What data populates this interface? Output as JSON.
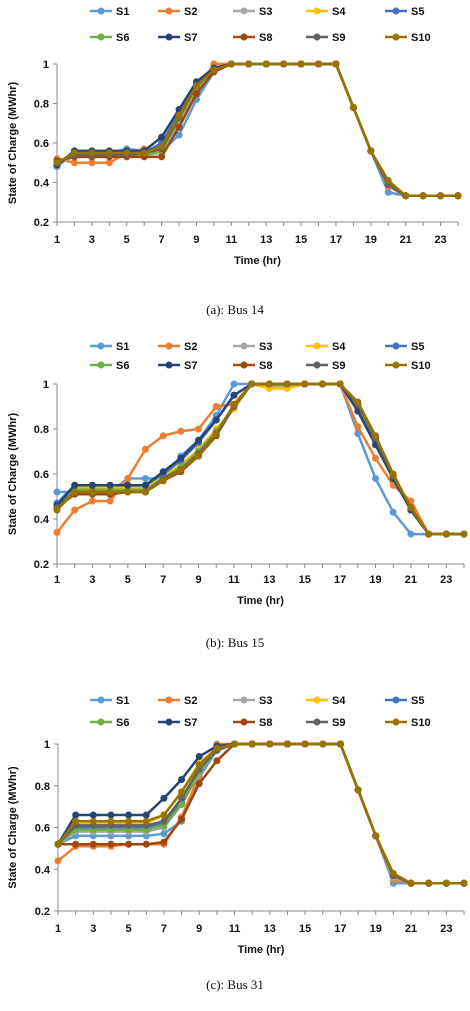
{
  "colors": {
    "S1": "#5b9bd5",
    "S2": "#ed7d31",
    "S3": "#a5a5a5",
    "S4": "#ffc000",
    "S5": "#4472c4",
    "S6": "#70ad47",
    "S7": "#264478",
    "S8": "#9e480e",
    "S9": "#636363",
    "S10": "#997300"
  },
  "chart_data": [
    {
      "type": "line",
      "caption": "(a): Bus 14",
      "xlabel": "Time (hr)",
      "ylabel": "State of Charge (MWhr)",
      "ylim": [
        0.2,
        1
      ],
      "yticks": [
        "0.2",
        "0.4",
        "0.6",
        "0.8",
        "1"
      ],
      "xlim": [
        1,
        24
      ],
      "xticks": [
        "1",
        "3",
        "5",
        "7",
        "9",
        "11",
        "13",
        "15",
        "17",
        "19",
        "21",
        "23"
      ],
      "grid": false,
      "legend": "top",
      "x": [
        1,
        2,
        3,
        4,
        5,
        6,
        7,
        8,
        9,
        10,
        11,
        12,
        13,
        14,
        15,
        16,
        17,
        18,
        19,
        20,
        21,
        22,
        23,
        24
      ],
      "series": [
        {
          "name": "S1",
          "values": [
            0.48,
            0.55,
            0.55,
            0.55,
            0.57,
            0.56,
            0.56,
            0.64,
            0.82,
            0.96,
            1,
            1,
            1,
            1,
            1,
            1,
            1,
            0.78,
            0.56,
            0.35,
            0.333,
            0.333,
            0.333,
            0.333
          ]
        },
        {
          "name": "S2",
          "values": [
            0.52,
            0.5,
            0.5,
            0.5,
            0.55,
            0.57,
            0.55,
            0.7,
            0.86,
            1,
            1,
            1,
            1,
            1,
            1,
            1,
            1,
            0.78,
            0.56,
            0.38,
            0.333,
            0.333,
            0.333,
            0.333
          ]
        },
        {
          "name": "S3",
          "values": [
            0.5,
            0.53,
            0.53,
            0.53,
            0.54,
            0.54,
            0.55,
            0.7,
            0.87,
            0.96,
            1,
            1,
            1,
            1,
            1,
            1,
            1,
            0.78,
            0.56,
            0.39,
            0.333,
            0.333,
            0.333,
            0.333
          ]
        },
        {
          "name": "S4",
          "values": [
            0.5,
            0.54,
            0.54,
            0.54,
            0.55,
            0.55,
            0.58,
            0.72,
            0.88,
            0.97,
            1,
            1,
            1,
            1,
            1,
            1,
            1,
            0.78,
            0.56,
            0.39,
            0.333,
            0.333,
            0.333,
            0.333
          ]
        },
        {
          "name": "S5",
          "values": [
            0.49,
            0.55,
            0.55,
            0.55,
            0.55,
            0.55,
            0.6,
            0.75,
            0.9,
            0.97,
            1,
            1,
            1,
            1,
            1,
            1,
            1,
            0.78,
            0.56,
            0.39,
            0.333,
            0.333,
            0.333,
            0.333
          ]
        },
        {
          "name": "S6",
          "values": [
            0.5,
            0.54,
            0.54,
            0.54,
            0.54,
            0.54,
            0.56,
            0.72,
            0.88,
            0.97,
            1,
            1,
            1,
            1,
            1,
            1,
            1,
            0.78,
            0.56,
            0.39,
            0.333,
            0.333,
            0.333,
            0.333
          ]
        },
        {
          "name": "S7",
          "values": [
            0.49,
            0.56,
            0.56,
            0.56,
            0.56,
            0.56,
            0.63,
            0.77,
            0.91,
            0.98,
            1,
            1,
            1,
            1,
            1,
            1,
            1,
            0.78,
            0.56,
            0.39,
            0.333,
            0.333,
            0.333,
            0.333
          ]
        },
        {
          "name": "S8",
          "values": [
            0.51,
            0.53,
            0.53,
            0.53,
            0.53,
            0.53,
            0.53,
            0.68,
            0.85,
            0.96,
            1,
            1,
            1,
            1,
            1,
            1,
            1,
            0.78,
            0.56,
            0.39,
            0.333,
            0.333,
            0.333,
            0.333
          ]
        },
        {
          "name": "S9",
          "values": [
            0.5,
            0.54,
            0.54,
            0.54,
            0.54,
            0.55,
            0.57,
            0.73,
            0.89,
            0.97,
            1,
            1,
            1,
            1,
            1,
            1,
            1,
            0.78,
            0.56,
            0.39,
            0.333,
            0.333,
            0.333,
            0.333
          ]
        },
        {
          "name": "S10",
          "values": [
            0.5,
            0.55,
            0.55,
            0.55,
            0.55,
            0.55,
            0.58,
            0.74,
            0.89,
            0.97,
            1,
            1,
            1,
            1,
            1,
            1,
            1,
            0.78,
            0.56,
            0.41,
            0.333,
            0.333,
            0.333,
            0.333
          ]
        }
      ]
    },
    {
      "type": "line",
      "caption": "(b): Bus 15",
      "xlabel": "Time (hr)",
      "ylabel": "State of Charge (MWhr)",
      "ylim": [
        0.2,
        1
      ],
      "yticks": [
        "0.2",
        "0.4",
        "0.6",
        "0.8",
        "1"
      ],
      "xlim": [
        1,
        24
      ],
      "xticks": [
        "1",
        "3",
        "5",
        "7",
        "9",
        "11",
        "13",
        "15",
        "17",
        "19",
        "21",
        "23"
      ],
      "grid": false,
      "legend": "top",
      "x": [
        1,
        2,
        3,
        4,
        5,
        6,
        7,
        8,
        9,
        10,
        11,
        12,
        13,
        14,
        15,
        16,
        17,
        18,
        19,
        20,
        21,
        22,
        23,
        24
      ],
      "series": [
        {
          "name": "S1",
          "values": [
            0.52,
            0.52,
            0.52,
            0.52,
            0.58,
            0.58,
            0.58,
            0.68,
            0.75,
            0.86,
            1,
            1,
            1,
            1,
            1,
            1,
            1,
            0.78,
            0.58,
            0.43,
            0.333,
            0.333,
            0.333,
            0.333
          ]
        },
        {
          "name": "S2",
          "values": [
            0.34,
            0.44,
            0.48,
            0.48,
            0.58,
            0.71,
            0.77,
            0.79,
            0.8,
            0.9,
            0.91,
            1,
            1,
            1,
            1,
            1,
            1,
            0.81,
            0.67,
            0.55,
            0.48,
            0.333,
            0.333,
            0.333
          ]
        },
        {
          "name": "S3",
          "values": [
            0.46,
            0.53,
            0.53,
            0.53,
            0.53,
            0.53,
            0.59,
            0.64,
            0.71,
            0.79,
            0.89,
            1,
            0.99,
            0.99,
            1,
            1,
            1,
            0.89,
            0.74,
            0.58,
            0.44,
            0.333,
            0.333,
            0.333
          ]
        },
        {
          "name": "S4",
          "values": [
            0.46,
            0.54,
            0.54,
            0.54,
            0.54,
            0.54,
            0.59,
            0.64,
            0.71,
            0.8,
            0.89,
            1,
            0.98,
            0.98,
            1,
            1,
            1,
            0.89,
            0.74,
            0.58,
            0.44,
            0.333,
            0.333,
            0.333
          ]
        },
        {
          "name": "S5",
          "values": [
            0.47,
            0.55,
            0.55,
            0.55,
            0.55,
            0.55,
            0.6,
            0.66,
            0.74,
            0.84,
            0.95,
            1,
            1,
            1,
            1,
            1,
            1,
            0.88,
            0.73,
            0.58,
            0.44,
            0.333,
            0.333,
            0.333
          ]
        },
        {
          "name": "S6",
          "values": [
            0.46,
            0.53,
            0.53,
            0.53,
            0.53,
            0.53,
            0.58,
            0.63,
            0.7,
            0.79,
            0.9,
            1,
            1,
            1,
            1,
            1,
            1,
            0.9,
            0.75,
            0.59,
            0.44,
            0.333,
            0.333,
            0.333
          ]
        },
        {
          "name": "S7",
          "values": [
            0.46,
            0.55,
            0.55,
            0.55,
            0.55,
            0.55,
            0.61,
            0.67,
            0.75,
            0.84,
            0.95,
            1,
            1,
            1,
            1,
            1,
            1,
            0.88,
            0.73,
            0.58,
            0.44,
            0.333,
            0.333,
            0.333
          ]
        },
        {
          "name": "S8",
          "values": [
            0.45,
            0.51,
            0.51,
            0.51,
            0.52,
            0.52,
            0.57,
            0.61,
            0.68,
            0.77,
            0.9,
            1,
            1,
            1,
            1,
            1,
            1,
            0.91,
            0.76,
            0.59,
            0.45,
            0.333,
            0.333,
            0.333
          ]
        },
        {
          "name": "S9",
          "values": [
            0.45,
            0.52,
            0.52,
            0.52,
            0.52,
            0.52,
            0.58,
            0.62,
            0.69,
            0.78,
            0.9,
            1,
            1,
            1,
            1,
            1,
            1,
            0.91,
            0.76,
            0.59,
            0.45,
            0.333,
            0.333,
            0.333
          ]
        },
        {
          "name": "S10",
          "values": [
            0.44,
            0.52,
            0.52,
            0.52,
            0.52,
            0.52,
            0.57,
            0.62,
            0.68,
            0.78,
            0.91,
            1,
            1,
            1,
            1,
            1,
            1,
            0.92,
            0.77,
            0.6,
            0.45,
            0.333,
            0.333,
            0.333
          ]
        }
      ]
    },
    {
      "type": "line",
      "caption": "(c): Bus 31",
      "xlabel": "Time (hr)",
      "ylabel": "State of Charge (MWhr)",
      "ylim": [
        0.2,
        1
      ],
      "yticks": [
        "0.2",
        "0.4",
        "0.6",
        "0.8",
        "1"
      ],
      "xlim": [
        1,
        24
      ],
      "xticks": [
        "1",
        "3",
        "5",
        "7",
        "9",
        "11",
        "13",
        "15",
        "17",
        "19",
        "21",
        "23"
      ],
      "grid": false,
      "legend": "top",
      "x": [
        1,
        2,
        3,
        4,
        5,
        6,
        7,
        8,
        9,
        10,
        11,
        12,
        13,
        14,
        15,
        16,
        17,
        18,
        19,
        20,
        21,
        22,
        23,
        24
      ],
      "series": [
        {
          "name": "S1",
          "values": [
            0.52,
            0.56,
            0.56,
            0.56,
            0.56,
            0.56,
            0.57,
            0.63,
            0.84,
            0.97,
            1,
            1,
            1,
            1,
            1,
            1,
            1,
            0.78,
            0.56,
            0.333,
            0.333,
            0.333,
            0.333,
            0.333
          ]
        },
        {
          "name": "S2",
          "values": [
            0.44,
            0.51,
            0.51,
            0.51,
            0.52,
            0.52,
            0.52,
            0.65,
            0.85,
            1,
            1,
            1,
            1,
            1,
            1,
            1,
            1,
            0.78,
            0.56,
            0.35,
            0.333,
            0.333,
            0.333,
            0.333
          ]
        },
        {
          "name": "S3",
          "values": [
            0.52,
            0.58,
            0.58,
            0.58,
            0.58,
            0.58,
            0.6,
            0.71,
            0.86,
            0.97,
            1,
            1,
            1,
            1,
            1,
            1,
            1,
            0.78,
            0.56,
            0.36,
            0.333,
            0.333,
            0.333,
            0.333
          ]
        },
        {
          "name": "S4",
          "values": [
            0.52,
            0.62,
            0.62,
            0.62,
            0.62,
            0.62,
            0.66,
            0.77,
            0.91,
            0.98,
            1,
            1,
            1,
            1,
            1,
            1,
            1,
            0.78,
            0.56,
            0.37,
            0.333,
            0.333,
            0.333,
            0.333
          ]
        },
        {
          "name": "S5",
          "values": [
            0.52,
            0.6,
            0.6,
            0.6,
            0.6,
            0.6,
            0.62,
            0.72,
            0.87,
            0.97,
            1,
            1,
            1,
            1,
            1,
            1,
            1,
            0.78,
            0.56,
            0.37,
            0.333,
            0.333,
            0.333,
            0.333
          ]
        },
        {
          "name": "S6",
          "values": [
            0.52,
            0.59,
            0.59,
            0.59,
            0.59,
            0.59,
            0.61,
            0.71,
            0.87,
            0.97,
            1,
            1,
            1,
            1,
            1,
            1,
            1,
            0.78,
            0.56,
            0.37,
            0.333,
            0.333,
            0.333,
            0.333
          ]
        },
        {
          "name": "S7",
          "values": [
            0.52,
            0.66,
            0.66,
            0.66,
            0.66,
            0.66,
            0.74,
            0.83,
            0.94,
            0.99,
            1,
            1,
            1,
            1,
            1,
            1,
            1,
            0.78,
            0.56,
            0.37,
            0.333,
            0.333,
            0.333,
            0.333
          ]
        },
        {
          "name": "S8",
          "values": [
            0.52,
            0.52,
            0.52,
            0.52,
            0.52,
            0.52,
            0.53,
            0.64,
            0.81,
            0.92,
            1,
            1,
            1,
            1,
            1,
            1,
            1,
            0.78,
            0.56,
            0.37,
            0.333,
            0.333,
            0.333,
            0.333
          ]
        },
        {
          "name": "S9",
          "values": [
            0.52,
            0.61,
            0.61,
            0.61,
            0.61,
            0.61,
            0.63,
            0.74,
            0.88,
            0.97,
            1,
            1,
            1,
            1,
            1,
            1,
            1,
            0.78,
            0.56,
            0.37,
            0.333,
            0.333,
            0.333,
            0.333
          ]
        },
        {
          "name": "S10",
          "values": [
            0.52,
            0.63,
            0.63,
            0.63,
            0.63,
            0.63,
            0.66,
            0.77,
            0.9,
            0.98,
            1,
            1,
            1,
            1,
            1,
            1,
            1,
            0.78,
            0.56,
            0.38,
            0.333,
            0.333,
            0.333,
            0.333
          ]
        }
      ]
    }
  ]
}
